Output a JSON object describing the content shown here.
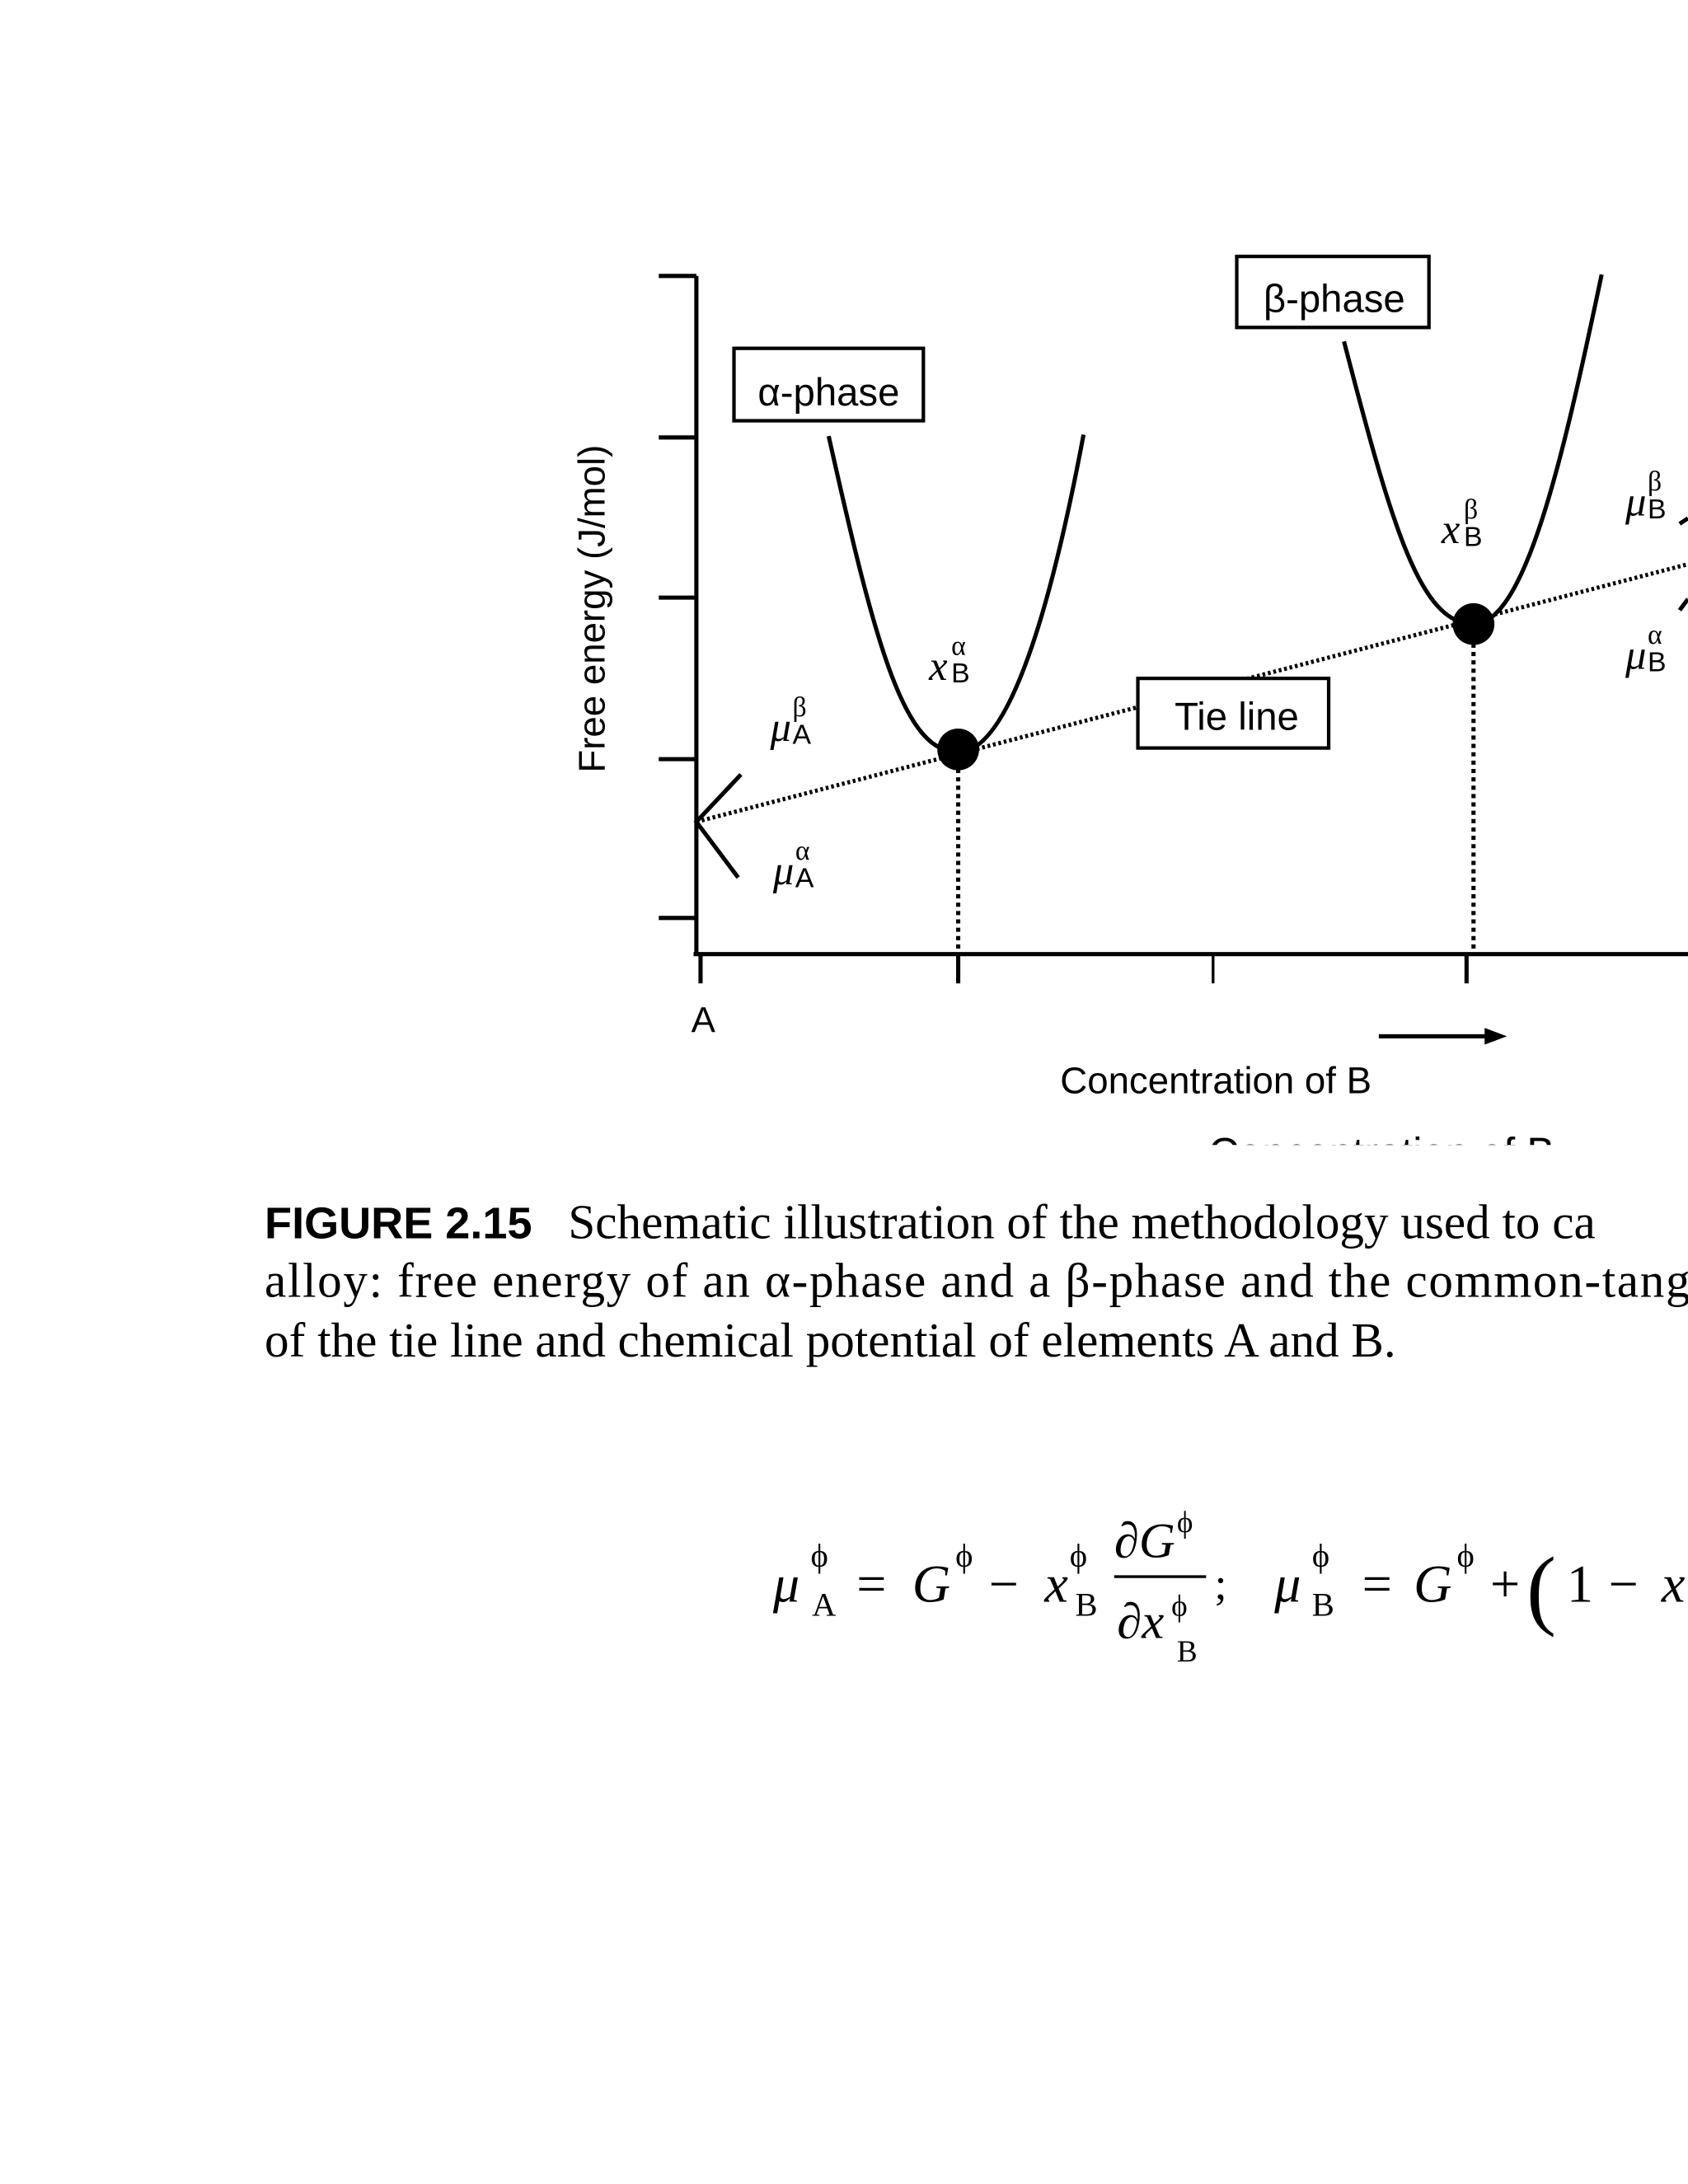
{
  "figure": {
    "y_axis_label": "Free energy (J/mol)",
    "x_axis_label": "Concentration of B",
    "x_origin_label": "A",
    "boxes": {
      "alpha_phase": "α-phase",
      "beta_phase": "β-phase",
      "tie_line": "Tie line"
    },
    "symbols": [
      {
        "main": "μ",
        "sup": "β",
        "sub": "A"
      },
      {
        "main": "μ",
        "sup": "α",
        "sub": "A"
      },
      {
        "main": "x",
        "sup": "α",
        "sub": "B"
      },
      {
        "main": "x",
        "sup": "β",
        "sub": "B"
      },
      {
        "main": "μ",
        "sup": "β",
        "sub": "B"
      },
      {
        "main": "μ",
        "sup": "α",
        "sub": "B"
      }
    ]
  },
  "caption": {
    "figure_label": "FIGURE 2.15",
    "lines": [
      "Schematic illustration of the methodology used to ca",
      "alloy: free energy of an α-phase and a β-phase and the common-tange",
      "of the tie line and chemical potential of elements A and B."
    ]
  },
  "equation": {
    "tokens": [
      "μ",
      "ϕ",
      "A",
      "=",
      "G",
      "ϕ",
      "−",
      "x",
      "ϕ",
      "B",
      "∂G",
      "ϕ",
      "∂x",
      "ϕ",
      "B",
      ";",
      "μ",
      "ϕ",
      "B",
      "=",
      "G",
      "ϕ",
      "+",
      "(",
      "1",
      "−",
      "x"
    ]
  }
}
